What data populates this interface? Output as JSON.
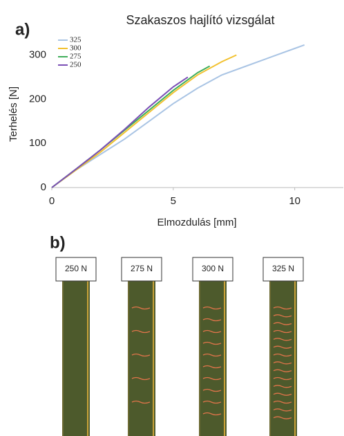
{
  "chart_data": {
    "type": "line",
    "panel_label": "a)",
    "title": "Szakaszos hajlító vizsgálat",
    "x_label": "Elmozdulás [mm]",
    "y_label": "Terhelés [N]",
    "xlim": [
      0,
      12
    ],
    "ylim": [
      0,
      340
    ],
    "xticks": [
      0,
      5,
      10
    ],
    "yticks": [
      0,
      100,
      200,
      300
    ],
    "legend": "top-left",
    "series": [
      {
        "name": "325",
        "color": "#a9c4e4",
        "x": [
          0,
          1,
          2,
          3,
          4,
          5,
          6,
          7,
          8,
          9,
          10,
          10.4
        ],
        "values": [
          0,
          40,
          75,
          110,
          150,
          190,
          225,
          255,
          275,
          295,
          315,
          323
        ]
      },
      {
        "name": "300",
        "color": "#f2c12e",
        "x": [
          0,
          1,
          2,
          3,
          4,
          5,
          6,
          7,
          7.6
        ],
        "values": [
          0,
          40,
          80,
          125,
          170,
          215,
          255,
          285,
          300
        ]
      },
      {
        "name": "275",
        "color": "#3fae5a",
        "x": [
          0,
          1,
          2,
          3,
          4,
          5,
          6,
          6.5
        ],
        "values": [
          0,
          42,
          85,
          130,
          175,
          220,
          260,
          275
        ]
      },
      {
        "name": "250",
        "color": "#7a4fb5",
        "x": [
          0,
          1,
          2,
          3,
          4,
          5,
          5.6
        ],
        "values": [
          0,
          42,
          85,
          132,
          182,
          228,
          250
        ]
      }
    ]
  },
  "photos": {
    "panel_label": "b)",
    "labels": [
      "250 N",
      "275 N",
      "300 N",
      "325 N"
    ]
  }
}
